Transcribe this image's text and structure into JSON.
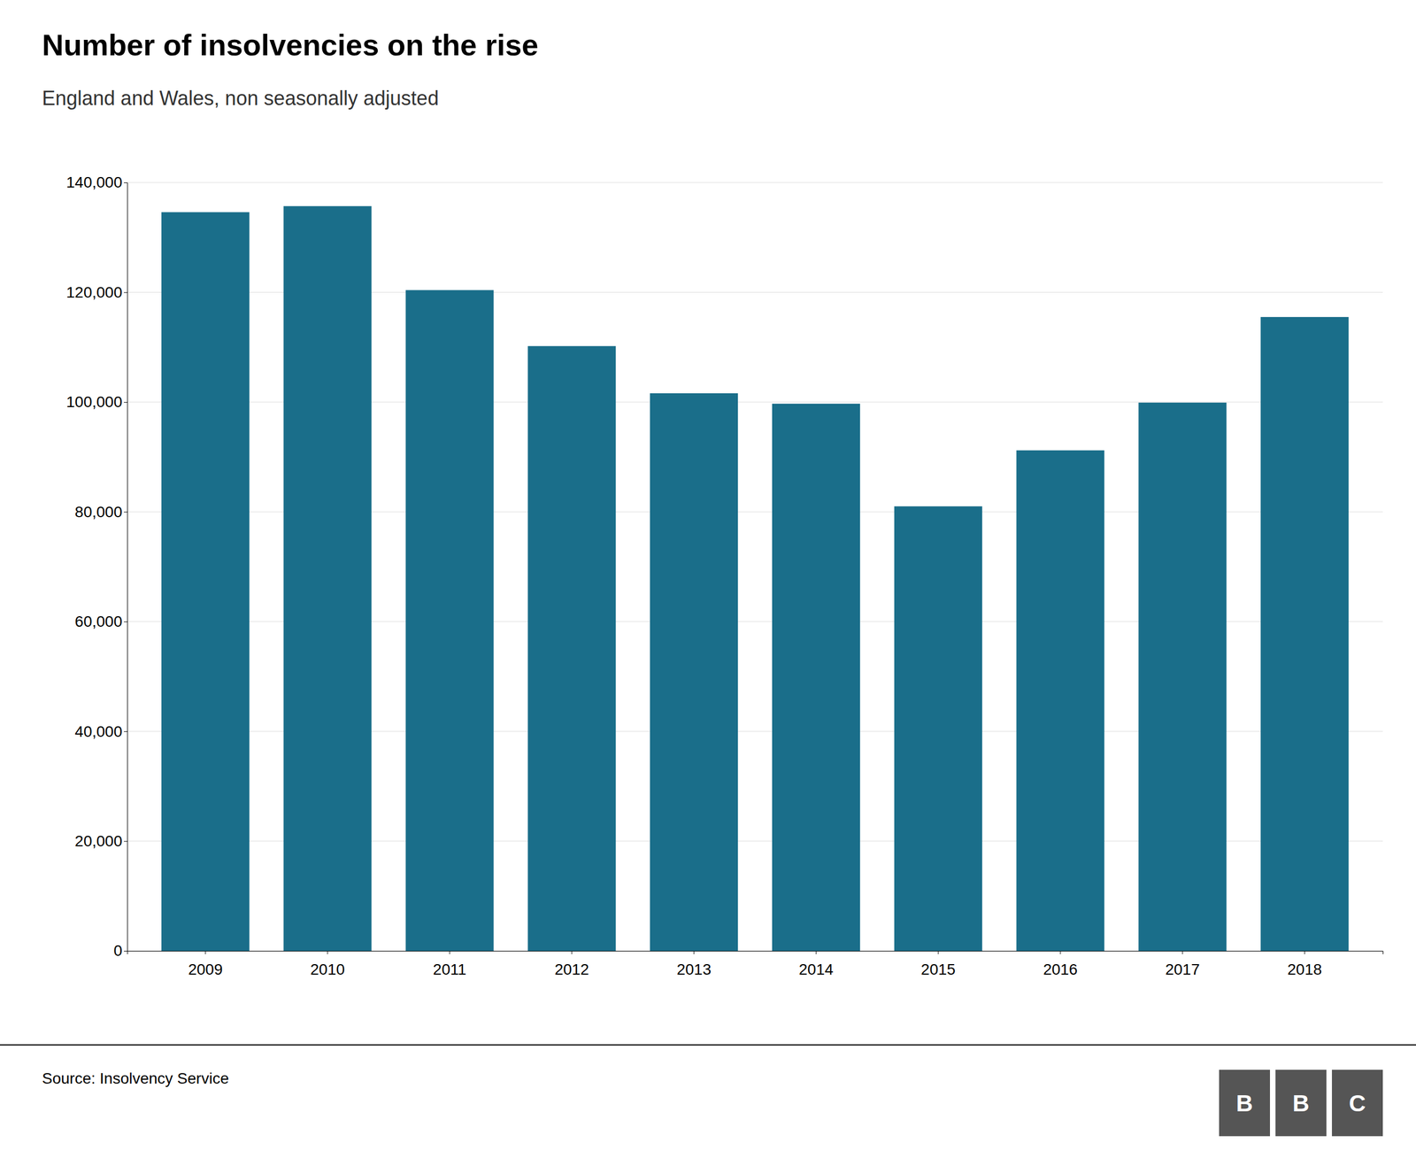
{
  "chart_data": {
    "type": "bar",
    "title": "Number of insolvencies on the rise",
    "subtitle": "England and Wales, non seasonally adjusted",
    "source": "Source: Insolvency Service",
    "annotations": [
      "B",
      "B",
      "C"
    ],
    "categories": [
      "2009",
      "2010",
      "2011",
      "2012",
      "2013",
      "2014",
      "2015",
      "2016",
      "2017",
      "2018"
    ],
    "values": [
      134600,
      135700,
      120400,
      110200,
      101600,
      99700,
      81000,
      91200,
      99900,
      115500
    ],
    "color": "#1a6e8a",
    "ylim": [
      0,
      140000
    ],
    "yticks": [
      0,
      {
        "value": 20000,
        "label": "20,000"
      },
      {
        "value": 40000,
        "label": "40,000"
      },
      {
        "value": 60000,
        "label": "60,000"
      },
      {
        "value": 80000,
        "label": "80,000"
      },
      {
        "value": 100000,
        "label": "100,000"
      },
      {
        "value": 120000,
        "label": "120,000"
      },
      {
        "value": 140000,
        "label": "140,000"
      }
    ],
    "grid": true
  }
}
